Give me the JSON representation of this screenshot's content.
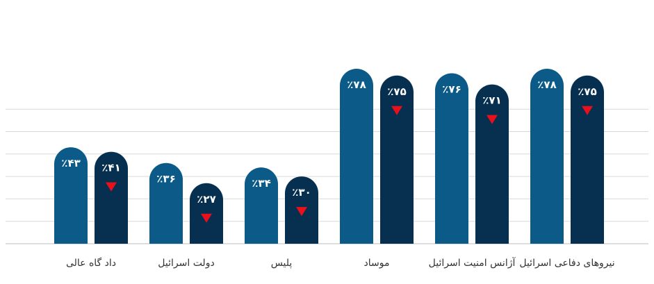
{
  "chart_data": {
    "type": "bar",
    "categories": [
      "داد گاه عالی",
      "دولت اسرائیل",
      "پلیس",
      "موساد",
      "آژانس امنیت اسرائیل",
      "نیروهای دفاعی اسرائیل"
    ],
    "series": [
      {
        "values": [
          43,
          36,
          34,
          78,
          76,
          78
        ],
        "labels": [
          "٪۴۳",
          "٪۳۶",
          "٪۳۴",
          "٪۷۸",
          "٪۷۶",
          "٪۷۸"
        ],
        "color": "#0b5a87"
      },
      {
        "values": [
          41,
          27,
          30,
          75,
          71,
          75
        ],
        "labels": [
          "٪۴۱",
          "٪۲۷",
          "٪۳۰",
          "٪۷۵",
          "٪۷۱",
          "٪۷۵"
        ],
        "color": "#073050",
        "marker": "down-triangle",
        "marker_color": "#e8101b"
      }
    ],
    "ylim": [
      0,
      100
    ],
    "grid": true,
    "xlabel": "",
    "ylabel": ""
  }
}
